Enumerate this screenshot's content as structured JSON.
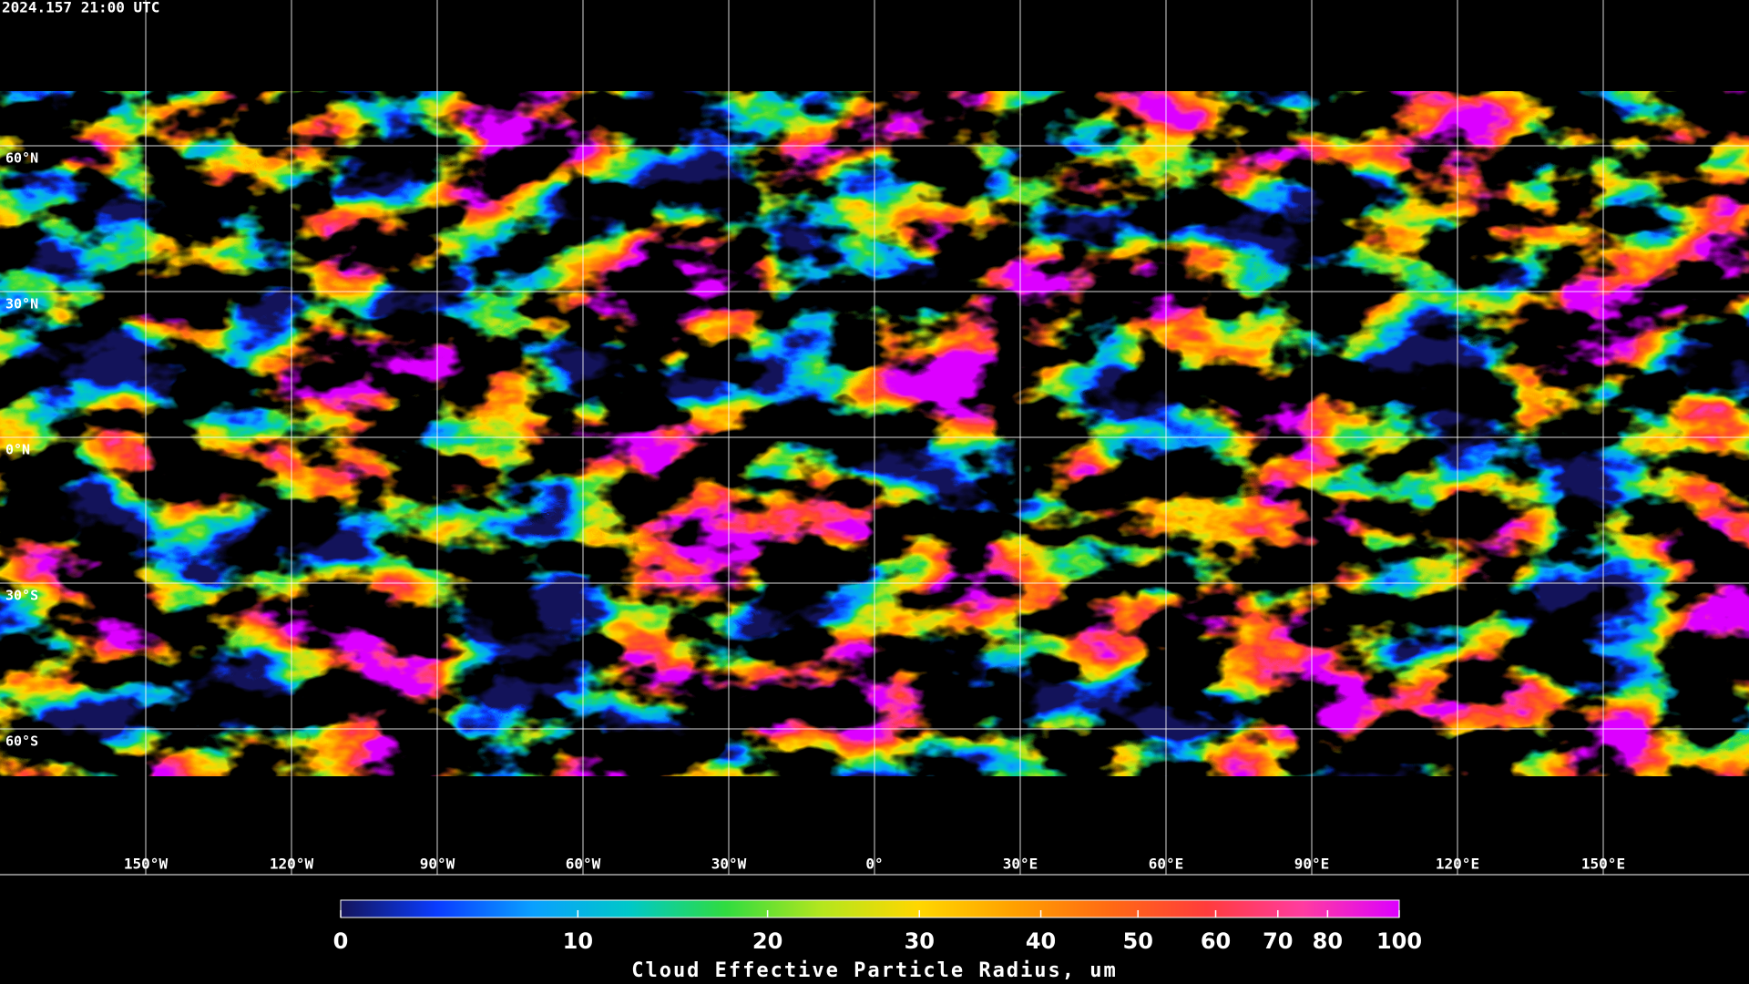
{
  "timestamp": "2024.157 21:00 UTC",
  "map": {
    "lat_lines": [
      {
        "value": 60,
        "label": "60°N"
      },
      {
        "value": 30,
        "label": "30°N"
      },
      {
        "value": 0,
        "label": "0°N"
      },
      {
        "value": -30,
        "label": "30°S"
      },
      {
        "value": -60,
        "label": "60°S"
      }
    ],
    "lon_lines": [
      {
        "value": -150,
        "label": "150°W"
      },
      {
        "value": -120,
        "label": "120°W"
      },
      {
        "value": -90,
        "label": "90°W"
      },
      {
        "value": -60,
        "label": "60°W"
      },
      {
        "value": -30,
        "label": "30°W"
      },
      {
        "value": 0,
        "label": "0°"
      },
      {
        "value": 30,
        "label": "30°E"
      },
      {
        "value": 60,
        "label": "60°E"
      },
      {
        "value": 90,
        "label": "90°E"
      },
      {
        "value": 120,
        "label": "120°E"
      },
      {
        "value": 150,
        "label": "150°E"
      }
    ]
  },
  "colorbar": {
    "title": "Cloud Effective Particle Radius, um",
    "lim": [
      0,
      100
    ],
    "ticks": [
      0,
      10,
      20,
      30,
      40,
      50,
      60,
      70,
      80,
      100
    ],
    "colors": [
      "#14145a",
      "#0a3cff",
      "#0aa0ff",
      "#00c8c8",
      "#30dc40",
      "#b4e61e",
      "#ffd700",
      "#ffa000",
      "#ff6a14",
      "#ff3c3c",
      "#ff3ca0",
      "#dc00ff"
    ]
  }
}
